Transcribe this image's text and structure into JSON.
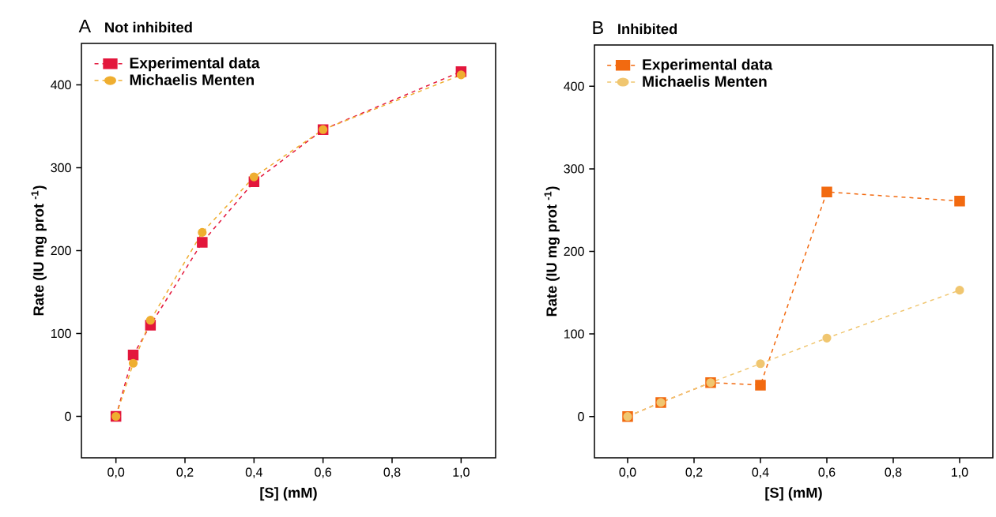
{
  "chart_data": [
    {
      "type": "line",
      "title": "Not inhibited",
      "annotations": [
        "A"
      ],
      "xlabel": "[S] (mM)",
      "ylabel": "Rate (IU mg prot $^{-1}$)",
      "x": [
        0,
        0.05,
        0.1,
        0.25,
        0.4,
        0.6,
        1.0
      ],
      "series": [
        {
          "name": "Experimental data",
          "color": "#e3173c",
          "marker": "square",
          "values": [
            0,
            74,
            110,
            210,
            283,
            346,
            416
          ]
        },
        {
          "name": "Michaelis Menten",
          "color": "#efae30",
          "marker": "circle",
          "values": [
            0,
            64,
            116,
            222,
            289,
            346,
            412
          ]
        }
      ],
      "xlim": [
        -0.1,
        1.1
      ],
      "ylim": [
        -50,
        450
      ],
      "xticks": [
        {
          "value": 0,
          "label": "0,0"
        },
        {
          "value": 0.2,
          "label": "0,2"
        },
        {
          "value": 0.4,
          "label": "0,4"
        },
        {
          "value": 0.6,
          "label": "0,6"
        },
        {
          "value": 0.8,
          "label": "0,8"
        },
        {
          "value": 1.0,
          "label": "1,0"
        }
      ],
      "yticks": [
        0,
        100,
        200,
        300,
        400
      ],
      "legend": "top left",
      "line_style": "dashed"
    },
    {
      "type": "line",
      "title": "Inhibited",
      "annotations": [
        "B"
      ],
      "xlabel": "[S] (mM)",
      "ylabel": "Rate (IU mg prot $^{-1}$)",
      "x": [
        0,
        0.1,
        0.25,
        0.4,
        0.6,
        1.0
      ],
      "series": [
        {
          "name": "Experimental data",
          "color": "#f26a10",
          "marker": "square",
          "values": [
            0,
            17,
            41,
            38,
            272,
            261
          ]
        },
        {
          "name": "Michaelis Menten",
          "color": "#f0c670",
          "marker": "circle",
          "values": [
            0,
            17,
            41,
            64,
            95,
            153
          ]
        }
      ],
      "xlim": [
        -0.1,
        1.1
      ],
      "ylim": [
        -50,
        450
      ],
      "xticks": [
        {
          "value": 0,
          "label": "0,0"
        },
        {
          "value": 0.2,
          "label": "0,2"
        },
        {
          "value": 0.4,
          "label": "0,4"
        },
        {
          "value": 0.6,
          "label": "0,6"
        },
        {
          "value": 0.8,
          "label": "0,8"
        },
        {
          "value": 1.0,
          "label": "1,0"
        }
      ],
      "yticks": [
        0,
        100,
        200,
        300,
        400
      ],
      "legend": "top left",
      "line_style": "dashed"
    }
  ]
}
